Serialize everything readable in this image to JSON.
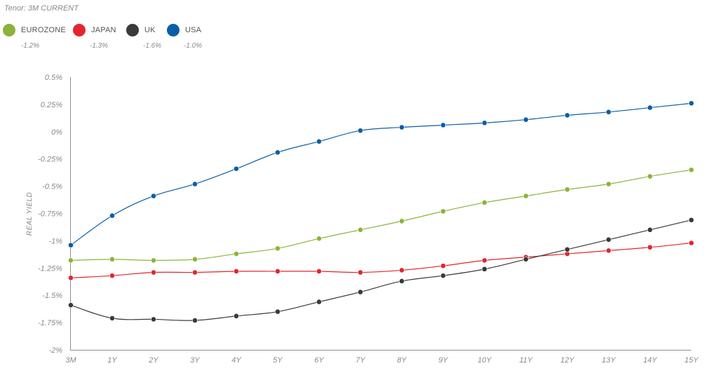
{
  "header": {
    "tenor_label": "Tenor: 3M CURRENT"
  },
  "legend": [
    {
      "name": "EUROZONE",
      "value": "-1.2%",
      "color": "#8db33a",
      "icon": "circle-dot"
    },
    {
      "name": "JAPAN",
      "value": "-1.3%",
      "color": "#e3262d",
      "icon": "circle-dot"
    },
    {
      "name": "UK",
      "value": "-1.6%",
      "color": "#3a3a3a",
      "icon": "circle-dot"
    },
    {
      "name": "USA",
      "value": "-1.0%",
      "color": "#0a5ea8",
      "icon": "circle-dot"
    }
  ],
  "chart_data": {
    "type": "line",
    "title": "Tenor: 3M CURRENT",
    "xlabel": "",
    "ylabel": "REAL YIELD",
    "ylim": [
      -2,
      0.5
    ],
    "yticks": [
      "0.5%",
      "0.25%",
      "0%",
      "-0.25%",
      "-0.5%",
      "-0.75%",
      "-1%",
      "-1.25%",
      "-1.5%",
      "-1.75%",
      "-2%"
    ],
    "ytick_values": [
      0.5,
      0.25,
      0,
      -0.25,
      -0.5,
      -0.75,
      -1,
      -1.25,
      -1.5,
      -1.75,
      -2
    ],
    "grid": false,
    "legend_position": "top-left",
    "categories": [
      "3M",
      "1Y",
      "2Y",
      "3Y",
      "4Y",
      "5Y",
      "6Y",
      "7Y",
      "8Y",
      "9Y",
      "10Y",
      "11Y",
      "12Y",
      "13Y",
      "14Y",
      "15Y"
    ],
    "series": [
      {
        "name": "EUROZONE",
        "color": "#8db33a",
        "values": [
          -1.18,
          -1.17,
          -1.18,
          -1.17,
          -1.12,
          -1.07,
          -0.98,
          -0.9,
          -0.82,
          -0.73,
          -0.65,
          -0.59,
          -0.53,
          -0.48,
          -0.41,
          -0.35
        ]
      },
      {
        "name": "JAPAN",
        "color": "#e3262d",
        "values": [
          -1.34,
          -1.32,
          -1.29,
          -1.29,
          -1.28,
          -1.28,
          -1.28,
          -1.29,
          -1.27,
          -1.23,
          -1.18,
          -1.15,
          -1.12,
          -1.09,
          -1.06,
          -1.02
        ]
      },
      {
        "name": "UK",
        "color": "#3a3a3a",
        "values": [
          -1.59,
          -1.71,
          -1.72,
          -1.73,
          -1.69,
          -1.65,
          -1.56,
          -1.47,
          -1.37,
          -1.32,
          -1.26,
          -1.17,
          -1.08,
          -0.99,
          -0.9,
          -0.81
        ]
      },
      {
        "name": "USA",
        "color": "#0a5ea8",
        "values": [
          -1.04,
          -0.77,
          -0.59,
          -0.48,
          -0.34,
          -0.19,
          -0.09,
          0.01,
          0.04,
          0.06,
          0.08,
          0.11,
          0.15,
          0.18,
          0.22,
          0.26
        ]
      }
    ]
  }
}
